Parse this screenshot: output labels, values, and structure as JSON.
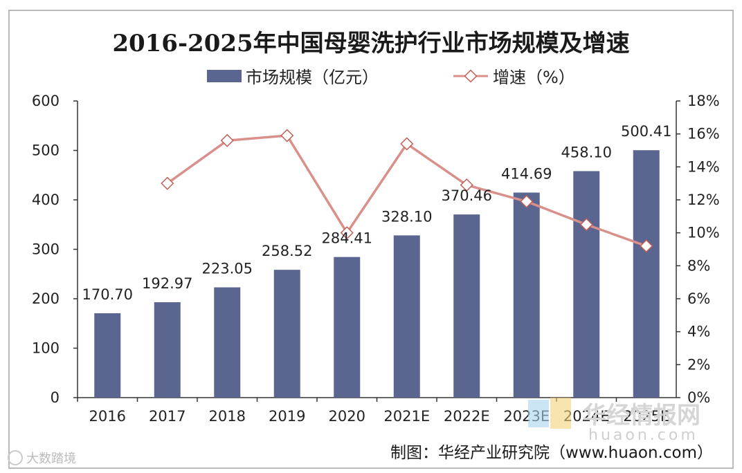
{
  "chart_data": {
    "type": "bar",
    "title": "2016-2025年中国母婴洗护行业市场规模及增速",
    "categories": [
      "2016",
      "2017",
      "2018",
      "2019",
      "2020",
      "2021E",
      "2022E",
      "2023E",
      "2024E",
      "2025E"
    ],
    "series": [
      {
        "name": "市场规模（亿元）",
        "kind": "bar",
        "axis": "left",
        "values": [
          170.7,
          192.97,
          223.05,
          258.52,
          284.41,
          328.1,
          370.46,
          414.69,
          458.1,
          500.41
        ],
        "labels": [
          "170.70",
          "192.97",
          "223.05",
          "258.52",
          "284.41",
          "328.10",
          "370.46",
          "414.69",
          "458.10",
          "500.41"
        ]
      },
      {
        "name": "增速（%）",
        "kind": "line",
        "axis": "right",
        "values": [
          null,
          13.0,
          15.6,
          15.9,
          10.0,
          15.4,
          12.9,
          11.9,
          10.5,
          9.2
        ]
      }
    ],
    "ylim_left": [
      0,
      600
    ],
    "yticks_left": [
      "0",
      "100",
      "200",
      "300",
      "400",
      "500",
      "600"
    ],
    "ylim_right": [
      0,
      18
    ],
    "yticks_right": [
      "0%",
      "2%",
      "4%",
      "6%",
      "8%",
      "10%",
      "12%",
      "14%",
      "16%",
      "18%"
    ],
    "source": "制图：华经产业研究院（www.huaon.com）",
    "colors": {
      "bar": "#5b6690",
      "line": "#d98f8a",
      "marker_fill": "#ffffff",
      "marker_stroke": "#c06058"
    }
  },
  "watermark": {
    "text": "华经情报网",
    "url": "huaon.com"
  },
  "corner_mark": "大数踏境"
}
